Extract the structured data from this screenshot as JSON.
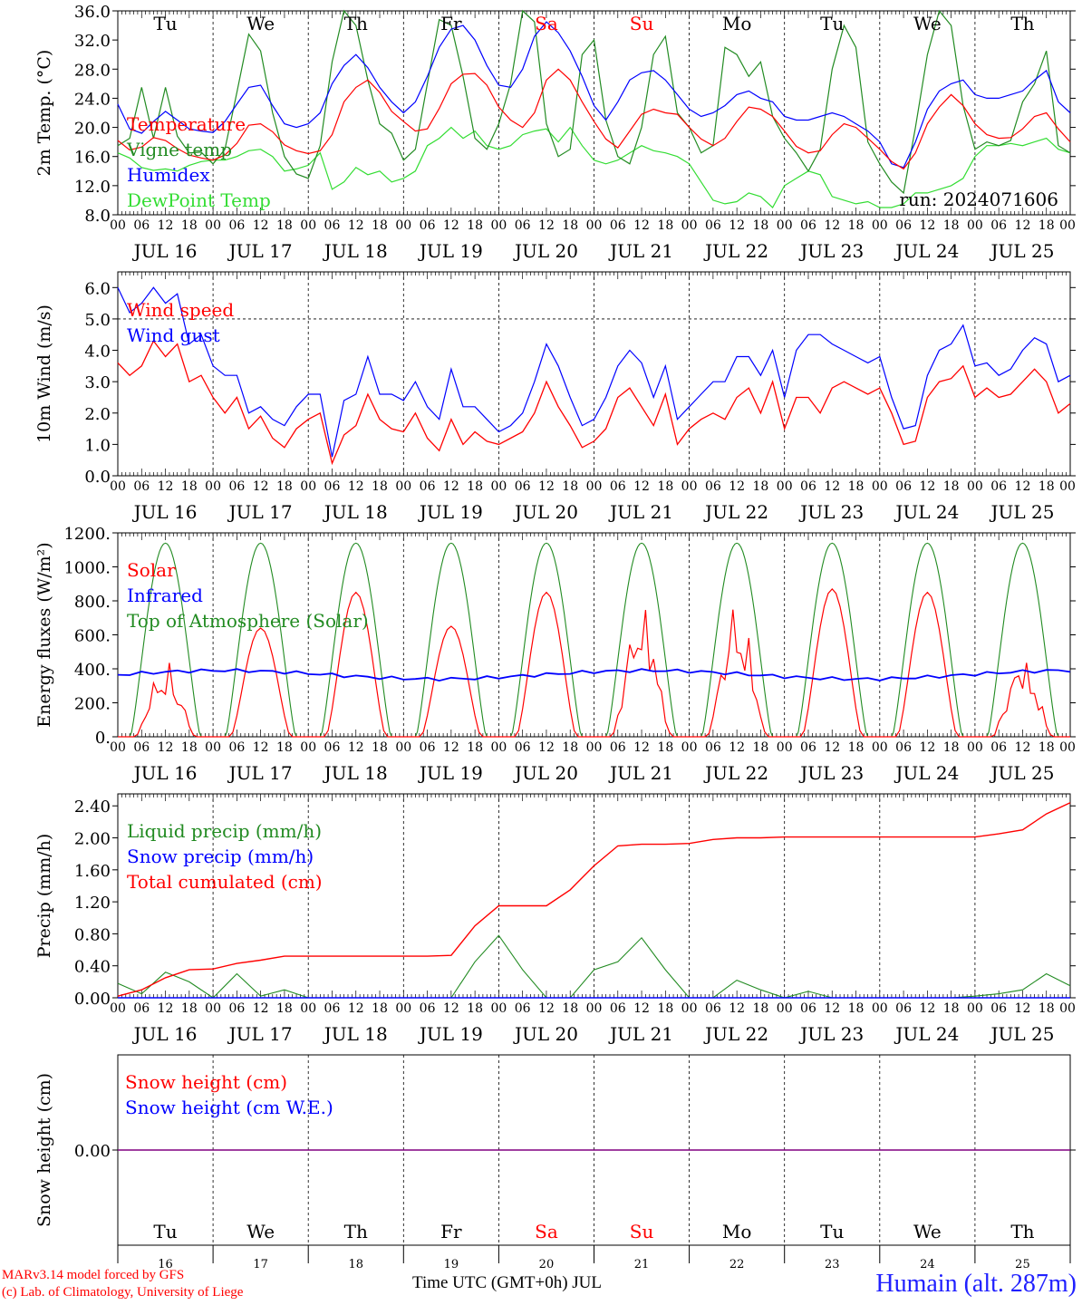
{
  "footer": {
    "credit_line1": "MARv3.14 model forced by GFS",
    "credit_line2": "(c) Lab. of Climatology, University of Liege",
    "x_axis_label": "Time UTC (GMT+0h) JUL",
    "station": "Humain (alt. 287m)"
  },
  "colors": {
    "red": "#ff0000",
    "green": "#228b22",
    "blue": "#0000ff",
    "lightgreen": "#33dd33",
    "purple": "#800080",
    "weekend": "#ff0000"
  },
  "chart_data": [
    {
      "type": "line",
      "ylabel": "2m Temp. (°C)",
      "ylim": [
        8,
        36
      ],
      "yticks": [
        "8.0",
        "12.0",
        "16.0",
        "20.0",
        "24.0",
        "28.0",
        "32.0",
        "36.0"
      ],
      "day_names": [
        "Tu",
        "We",
        "Th",
        "Fr",
        "Sa",
        "Su",
        "Mo",
        "Tu",
        "We",
        "Th"
      ],
      "weekend_days": [
        "Sa",
        "Su"
      ],
      "annotation": "run: 2024071606",
      "x_hours": [
        0,
        3,
        6,
        9,
        12,
        15,
        18,
        21,
        24,
        27,
        30,
        33,
        36,
        39,
        42,
        45,
        48,
        51,
        54,
        57,
        60,
        63,
        66,
        69,
        72,
        75,
        78,
        81,
        84,
        87,
        90,
        93,
        96,
        99,
        102,
        105,
        108,
        111,
        114,
        117,
        120,
        123,
        126,
        129,
        132,
        135,
        138,
        141,
        144,
        147,
        150,
        153,
        156,
        159,
        162,
        165,
        168,
        171,
        174,
        177,
        180,
        183,
        186,
        189,
        192,
        195,
        198,
        201,
        204,
        207,
        210,
        213,
        216,
        219,
        222,
        225,
        228,
        231,
        234,
        237,
        240
      ],
      "series": [
        {
          "name": "Temperature",
          "color": "red",
          "values": [
            18.2,
            16.9,
            17.3,
            18.6,
            18.2,
            17.1,
            16.2,
            15.8,
            15.5,
            16.2,
            17.8,
            20.3,
            20.5,
            19.4,
            17.6,
            16.8,
            16.4,
            16.8,
            19.0,
            23.5,
            25.5,
            26.5,
            24.8,
            22.2,
            20.8,
            19.5,
            19.8,
            22.6,
            26.0,
            27.3,
            27.4,
            25.8,
            22.8,
            21.0,
            20.0,
            22.0,
            26.5,
            28.0,
            26.5,
            23.5,
            20.8,
            18.4,
            17.2,
            19.5,
            21.8,
            22.5,
            22.0,
            21.8,
            20.0,
            18.4,
            17.5,
            18.5,
            20.8,
            22.8,
            22.5,
            21.5,
            19.5,
            17.4,
            16.5,
            16.8,
            19.0,
            20.5,
            20.0,
            18.5,
            17.0,
            15.3,
            14.3,
            16.5,
            20.5,
            22.8,
            24.5,
            23.0,
            20.5,
            19.0,
            18.5,
            18.6,
            19.8,
            21.5,
            22.0,
            19.8,
            18.0
          ]
        },
        {
          "name": "Vigne temp",
          "color": "green",
          "values": [
            17.5,
            18.5,
            25.5,
            18.5,
            25.5,
            18.8,
            16.5,
            16.6,
            15.0,
            17.0,
            24.8,
            32.8,
            30.5,
            22.0,
            16.0,
            13.6,
            13.0,
            17.5,
            29.0,
            36.0,
            34.0,
            26.5,
            20.5,
            19.2,
            15.5,
            17.0,
            26.0,
            34.8,
            34.0,
            27.0,
            18.5,
            17.0,
            20.5,
            26.0,
            36.0,
            34.5,
            20.5,
            16.0,
            17.0,
            30.0,
            32.0,
            21.0,
            16.0,
            15.0,
            20.0,
            30.0,
            32.5,
            22.0,
            20.0,
            16.5,
            17.5,
            31.0,
            30.0,
            27.0,
            29.0,
            21.5,
            18.5,
            16.5,
            14.0,
            17.0,
            28.0,
            34.0,
            31.0,
            18.0,
            15.0,
            12.5,
            11.0,
            20.0,
            30.0,
            36.0,
            34.0,
            23.0,
            17.0,
            18.0,
            17.5,
            18.2,
            23.5,
            26.0,
            30.5,
            17.5,
            16.5
          ]
        },
        {
          "name": "Humidex",
          "color": "blue",
          "values": [
            23.2,
            19.8,
            19.2,
            20.8,
            22.2,
            21.0,
            19.8,
            19.5,
            19.3,
            20.8,
            23.2,
            25.5,
            25.8,
            23.0,
            20.5,
            20.0,
            20.5,
            22.0,
            26.0,
            28.5,
            30.0,
            28.2,
            25.5,
            23.5,
            22.0,
            23.5,
            27.0,
            31.0,
            33.5,
            34.0,
            32.0,
            28.5,
            25.8,
            25.5,
            28.0,
            32.5,
            34.5,
            33.0,
            30.5,
            27.0,
            23.0,
            21.0,
            23.5,
            26.5,
            27.5,
            27.8,
            26.5,
            24.5,
            22.5,
            21.5,
            22.0,
            23.0,
            24.5,
            25.0,
            24.0,
            23.5,
            21.5,
            21.0,
            21.0,
            21.5,
            22.0,
            21.5,
            20.5,
            19.5,
            18.0,
            15.0,
            14.5,
            18.0,
            22.5,
            25.0,
            26.0,
            26.5,
            24.5,
            24.0,
            24.0,
            24.5,
            25.0,
            26.5,
            27.8,
            23.5,
            22.0
          ]
        },
        {
          "name": "DewPoint Temp",
          "color": "lightgreen",
          "values": [
            16.5,
            15.8,
            14.5,
            14.1,
            14.3,
            14.0,
            14.8,
            15.3,
            15.5,
            15.5,
            16.0,
            16.8,
            17.0,
            16.0,
            14.0,
            14.3,
            14.8,
            16.5,
            11.5,
            12.5,
            14.5,
            13.5,
            14.0,
            12.5,
            13.0,
            14.0,
            17.5,
            18.5,
            20.0,
            18.5,
            19.5,
            17.5,
            17.0,
            17.5,
            19.0,
            19.5,
            19.8,
            18.0,
            20.0,
            17.5,
            15.5,
            15.0,
            15.5,
            16.5,
            17.5,
            16.8,
            16.5,
            16.0,
            15.0,
            12.5,
            10.0,
            9.5,
            9.8,
            11.0,
            10.5,
            9.0,
            12.0,
            13.0,
            14.0,
            13.5,
            10.5,
            10.0,
            9.5,
            9.8,
            9.0,
            9.0,
            9.5,
            11.0,
            11.0,
            11.5,
            12.0,
            13.0,
            16.0,
            17.5,
            17.5,
            17.8,
            17.5,
            18.0,
            18.5,
            17.0,
            16.5
          ]
        }
      ]
    },
    {
      "type": "line",
      "ylabel": "10m Wind (m/s)",
      "ylim": [
        0,
        6.5
      ],
      "yticks": [
        "0.0",
        "1.0",
        "2.0",
        "3.0",
        "4.0",
        "5.0",
        "6.0"
      ],
      "reference_line": 5.0,
      "x_hours": [
        0,
        3,
        6,
        9,
        12,
        15,
        18,
        21,
        24,
        27,
        30,
        33,
        36,
        39,
        42,
        45,
        48,
        51,
        54,
        57,
        60,
        63,
        66,
        69,
        72,
        75,
        78,
        81,
        84,
        87,
        90,
        93,
        96,
        99,
        102,
        105,
        108,
        111,
        114,
        117,
        120,
        123,
        126,
        129,
        132,
        135,
        138,
        141,
        144,
        147,
        150,
        153,
        156,
        159,
        162,
        165,
        168,
        171,
        174,
        177,
        180,
        183,
        186,
        189,
        192,
        195,
        198,
        201,
        204,
        207,
        210,
        213,
        216,
        219,
        222,
        225,
        228,
        231,
        234,
        237,
        240
      ],
      "series": [
        {
          "name": "Wind speed",
          "color": "red",
          "values": [
            3.6,
            3.2,
            3.5,
            4.3,
            3.8,
            4.2,
            3.0,
            3.2,
            2.5,
            2.0,
            2.5,
            1.5,
            1.9,
            1.2,
            0.9,
            1.5,
            1.8,
            2.0,
            0.4,
            1.3,
            1.6,
            2.6,
            1.8,
            1.5,
            1.4,
            2.0,
            1.2,
            0.8,
            1.8,
            1.0,
            1.4,
            1.1,
            1.0,
            1.2,
            1.4,
            2.0,
            3.0,
            2.2,
            1.6,
            0.9,
            1.1,
            1.5,
            2.5,
            2.8,
            2.2,
            1.6,
            2.6,
            1.0,
            1.5,
            1.8,
            2.0,
            1.8,
            2.5,
            2.8,
            2.0,
            3.0,
            1.5,
            2.5,
            2.5,
            2.0,
            2.8,
            3.0,
            2.8,
            2.6,
            2.8,
            2.0,
            1.0,
            1.1,
            2.5,
            3.0,
            3.1,
            3.5,
            2.5,
            2.8,
            2.5,
            2.6,
            3.0,
            3.4,
            3.0,
            2.0,
            2.3
          ]
        },
        {
          "name": "Wind gust",
          "color": "blue",
          "values": [
            6.0,
            5.2,
            5.5,
            6.0,
            5.5,
            5.8,
            4.2,
            4.5,
            3.5,
            3.2,
            3.2,
            2.0,
            2.2,
            1.8,
            1.6,
            2.2,
            2.6,
            2.6,
            0.6,
            2.4,
            2.6,
            3.8,
            2.6,
            2.6,
            2.4,
            3.0,
            2.2,
            1.8,
            3.4,
            2.2,
            2.2,
            1.8,
            1.4,
            1.6,
            2.0,
            3.0,
            4.2,
            3.5,
            2.5,
            1.6,
            1.8,
            2.5,
            3.5,
            4.0,
            3.6,
            2.5,
            3.5,
            1.8,
            2.2,
            2.6,
            3.0,
            3.0,
            3.8,
            3.8,
            3.2,
            4.0,
            2.5,
            4.0,
            4.5,
            4.5,
            4.2,
            4.0,
            3.8,
            3.6,
            3.8,
            2.5,
            1.5,
            1.6,
            3.2,
            4.0,
            4.2,
            4.8,
            3.5,
            3.6,
            3.2,
            3.4,
            4.0,
            4.4,
            4.2,
            3.0,
            3.2
          ]
        }
      ]
    },
    {
      "type": "line",
      "ylabel": "Energy fluxes (W/m²)",
      "ylim": [
        0,
        1200
      ],
      "yticks": [
        "0.",
        "200.",
        "400.",
        "600.",
        "800.",
        "1000.",
        "1200."
      ],
      "series": [
        {
          "name": "Solar",
          "color": "red",
          "daily_peaks": [
            450,
            640,
            850,
            650,
            850,
            800,
            800,
            870,
            850,
            480
          ]
        },
        {
          "name": "Infrared",
          "color": "blue",
          "value_level": 365
        },
        {
          "name": "Top of Atmosphere (Solar)",
          "color": "green",
          "daily_peak": 1140
        }
      ]
    },
    {
      "type": "line",
      "ylabel": "Precip (mm/h)",
      "ylim": [
        0,
        2.55
      ],
      "yticks": [
        "0.00",
        "0.40",
        "0.80",
        "1.20",
        "1.60",
        "2.00",
        "2.40"
      ],
      "x_hours": [
        0,
        6,
        12,
        18,
        24,
        30,
        36,
        42,
        48,
        54,
        60,
        66,
        72,
        78,
        84,
        90,
        96,
        102,
        108,
        114,
        120,
        126,
        132,
        138,
        144,
        150,
        156,
        162,
        168,
        174,
        180,
        186,
        192,
        198,
        204,
        210,
        216,
        222,
        228,
        234,
        240
      ],
      "series": [
        {
          "name": "Liquid precip (mm/h)",
          "color": "green",
          "values": [
            0.18,
            0.05,
            0.32,
            0.2,
            0.0,
            0.3,
            0.02,
            0.1,
            0.0,
            0.0,
            0.0,
            0.0,
            0.0,
            0.0,
            0.0,
            0.45,
            0.78,
            0.35,
            0.0,
            0.0,
            0.35,
            0.45,
            0.75,
            0.35,
            0.0,
            0.0,
            0.22,
            0.1,
            0.0,
            0.08,
            0.0,
            0.0,
            0.0,
            0.0,
            0.0,
            0.0,
            0.02,
            0.05,
            0.1,
            0.3,
            0.15
          ]
        },
        {
          "name": "Snow precip (mm/h)",
          "color": "blue",
          "values": [
            0,
            0,
            0,
            0,
            0,
            0,
            0,
            0,
            0,
            0,
            0,
            0,
            0,
            0,
            0,
            0,
            0,
            0,
            0,
            0,
            0,
            0,
            0,
            0,
            0,
            0,
            0,
            0,
            0,
            0,
            0,
            0,
            0,
            0,
            0,
            0,
            0,
            0,
            0,
            0,
            0
          ]
        },
        {
          "name": "Total cumulated (cm)",
          "color": "red",
          "values": [
            0.02,
            0.1,
            0.25,
            0.35,
            0.36,
            0.43,
            0.47,
            0.52,
            0.52,
            0.52,
            0.52,
            0.52,
            0.52,
            0.52,
            0.53,
            0.9,
            1.15,
            1.15,
            1.15,
            1.35,
            1.65,
            1.9,
            1.92,
            1.92,
            1.93,
            1.98,
            2.0,
            2.0,
            2.01,
            2.01,
            2.01,
            2.01,
            2.01,
            2.01,
            2.01,
            2.01,
            2.01,
            2.05,
            2.1,
            2.3,
            2.44
          ]
        }
      ]
    },
    {
      "type": "line",
      "ylabel": "Snow height (cm)",
      "ylim": [
        -1,
        1
      ],
      "yticks": [
        "0.00"
      ],
      "series": [
        {
          "name": "Snow height (cm)",
          "color": "red",
          "value": 0.0
        },
        {
          "name": "Snow height (cm W.E.)",
          "color": "blue",
          "value": 0.0
        }
      ],
      "day_names": [
        "Tu",
        "We",
        "Th",
        "Fr",
        "Sa",
        "Su",
        "Mo",
        "Tu",
        "We",
        "Th"
      ],
      "day_numbers": [
        "16",
        "17",
        "18",
        "19",
        "20",
        "21",
        "22",
        "23",
        "24",
        "25"
      ]
    }
  ],
  "x_axis": {
    "hour_ticks": [
      "00",
      "06",
      "12",
      "18"
    ],
    "final_tick": "00",
    "dates": [
      "JUL 16",
      "JUL 17",
      "JUL 18",
      "JUL 19",
      "JUL 20",
      "JUL 21",
      "JUL 22",
      "JUL 23",
      "JUL 24",
      "JUL 25"
    ]
  }
}
